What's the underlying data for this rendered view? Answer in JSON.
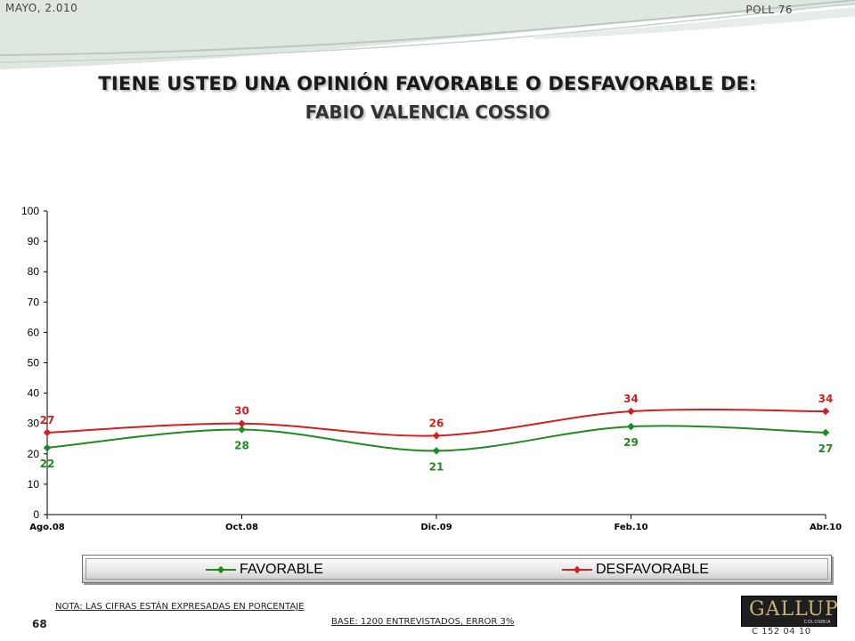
{
  "header": {
    "left": "MAYO, 2.010",
    "right": "POLL 76"
  },
  "title": {
    "line1": "TIENE USTED UNA OPINIÓN FAVORABLE O DESFAVORABLE DE:",
    "line2": "FABIO VALENCIA COSSIO"
  },
  "chart_data": {
    "type": "line",
    "categories": [
      "Ago.08",
      "Oct.08",
      "Dic.09",
      "Feb.10",
      "Abr.10"
    ],
    "ylim": [
      0,
      100
    ],
    "yticks": [
      0,
      10,
      20,
      30,
      40,
      50,
      60,
      70,
      80,
      90,
      100
    ],
    "series": [
      {
        "name": "FAVORABLE",
        "values": [
          22,
          28,
          21,
          29,
          27
        ],
        "color": "#1f8a1f"
      },
      {
        "name": "DESFAVORABLE",
        "values": [
          27,
          30,
          26,
          34,
          34
        ],
        "color": "#d21f1f"
      }
    ],
    "grid": false,
    "legend": "bottom",
    "smooth": true
  },
  "legend": {
    "favorable": "FAVORABLE",
    "desfavorable": "DESFAVORABLE"
  },
  "footer": {
    "note": "NOTA: LAS CIFRAS ESTÁN EXPRESADAS EN PORCENTAJE",
    "page": "68",
    "base": "BASE: 1200 ENTREVISTADOS, ERROR 3%",
    "logo": "GALLUP",
    "logo_sub": "COLOMBIA",
    "code": "C 152 04 10"
  }
}
